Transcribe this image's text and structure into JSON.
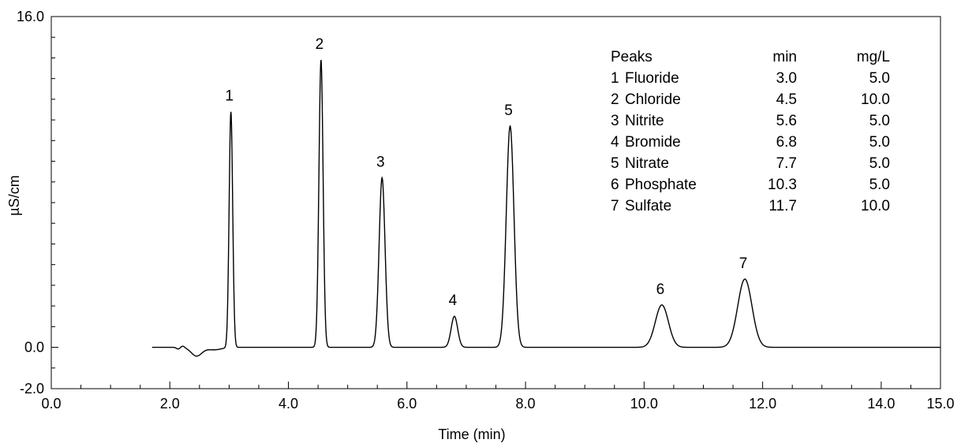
{
  "chart_data": {
    "type": "line",
    "xlabel": "Time (min)",
    "ylabel": "µS/cm",
    "xlim": [
      0,
      15
    ],
    "ylim": [
      -2,
      16
    ],
    "grid": false,
    "x_ticks": [
      "0.0",
      "2.0",
      "4.0",
      "6.0",
      "8.0",
      "10.0",
      "12.0",
      "14.0",
      "15.0"
    ],
    "y_ticks": [
      "16.0",
      "0.0",
      "-2.0"
    ],
    "baseline": 0.0,
    "peaks": [
      {
        "label": "1",
        "name": "Fluoride",
        "min": "3.0",
        "mgL": "5.0",
        "rt": 3.03,
        "height": 11.4,
        "width": 0.03
      },
      {
        "label": "2",
        "name": "Chloride",
        "min": "4.5",
        "mgL": "10.0",
        "rt": 4.55,
        "height": 13.9,
        "width": 0.035
      },
      {
        "label": "3",
        "name": "Nitrite",
        "min": "5.6",
        "mgL": "5.0",
        "rt": 5.58,
        "height": 8.2,
        "width": 0.05
      },
      {
        "label": "4",
        "name": "Bromide",
        "min": "6.8",
        "mgL": "5.0",
        "rt": 6.8,
        "height": 1.5,
        "width": 0.055
      },
      {
        "label": "5",
        "name": "Nitrate",
        "min": "7.7",
        "mgL": "5.0",
        "rt": 7.74,
        "height": 10.7,
        "width": 0.065
      },
      {
        "label": "6",
        "name": "Phosphate",
        "min": "10.3",
        "mgL": "5.0",
        "rt": 10.3,
        "height": 2.05,
        "width": 0.11
      },
      {
        "label": "7",
        "name": "Sulfate",
        "min": "11.7",
        "mgL": "10.0",
        "rt": 11.7,
        "height": 3.3,
        "width": 0.12
      }
    ],
    "legend": {
      "header": {
        "col1": "Peaks",
        "col2": "min",
        "col3": "mg/L"
      },
      "placement": "top-right"
    }
  }
}
